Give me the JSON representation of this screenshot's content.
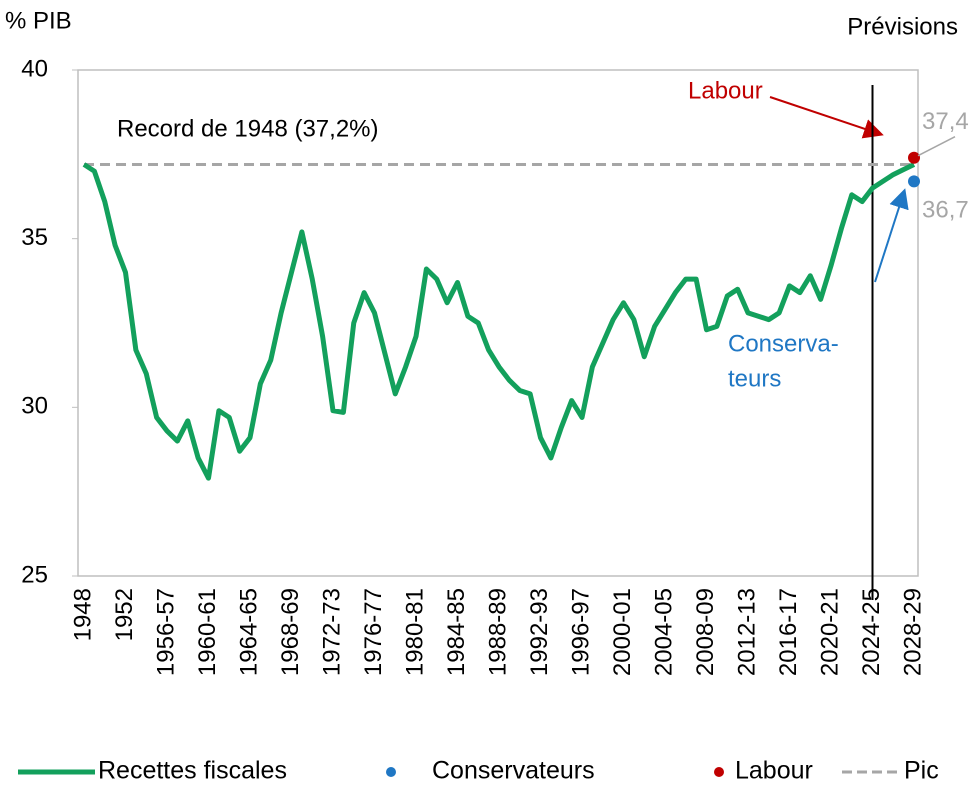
{
  "chart_data": {
    "type": "line",
    "y_label": "% PIB",
    "forecast_label": "Prévisions",
    "annotations": [
      {
        "text": "Record de 1948 (37,2%)"
      },
      {
        "text": "Labour",
        "color": "#c00000"
      },
      {
        "lines": [
          "Conserva-",
          "teurs"
        ],
        "color": "#1f77c4"
      }
    ],
    "categories": [
      "1948",
      null,
      null,
      null,
      "1952",
      null,
      null,
      null,
      "1956-57",
      null,
      null,
      null,
      "1960-61",
      null,
      null,
      null,
      "1964-65",
      null,
      null,
      null,
      "1968-69",
      null,
      null,
      null,
      "1972-73",
      null,
      null,
      null,
      "1976-77",
      null,
      null,
      null,
      "1980-81",
      null,
      null,
      null,
      "1984-85",
      null,
      null,
      null,
      "1988-89",
      null,
      null,
      null,
      "1992-93",
      null,
      null,
      null,
      "1996-97",
      null,
      null,
      null,
      "2000-01",
      null,
      null,
      null,
      "2004-05",
      null,
      null,
      null,
      "2008-09",
      null,
      null,
      null,
      "2012-13",
      null,
      null,
      null,
      "2016-17",
      null,
      null,
      null,
      "2020-21",
      null,
      null,
      null,
      "2024-25",
      null,
      null,
      null,
      "2028-29"
    ],
    "series": [
      {
        "name": "Recettes fiscales",
        "color": "#13a05c",
        "style": "line",
        "values": [
          37.2,
          37.0,
          36.1,
          34.8,
          34.0,
          31.7,
          31.0,
          29.7,
          29.3,
          29.0,
          29.6,
          28.5,
          27.9,
          29.9,
          29.7,
          28.7,
          29.1,
          30.7,
          31.4,
          32.8,
          34.0,
          35.2,
          33.8,
          32.1,
          29.9,
          29.85,
          32.5,
          33.4,
          32.8,
          31.6,
          30.4,
          31.2,
          32.1,
          34.1,
          33.8,
          33.1,
          33.7,
          32.7,
          32.5,
          31.7,
          31.2,
          30.8,
          30.5,
          30.4,
          29.1,
          28.5,
          29.4,
          30.2,
          29.7,
          31.2,
          31.9,
          32.6,
          33.1,
          32.6,
          31.5,
          32.4,
          32.9,
          33.4,
          33.8,
          33.8,
          32.3,
          32.4,
          33.3,
          33.5,
          32.8,
          32.7,
          32.6,
          32.8,
          33.6,
          33.4,
          33.9,
          33.2,
          34.2,
          35.3,
          36.3,
          36.1,
          36.5,
          36.7,
          36.9,
          37.05,
          37.2
        ]
      },
      {
        "name": "Conservateurs",
        "color": "#1f77c4",
        "style": "dot",
        "values": [
          null,
          null,
          null,
          null,
          null,
          null,
          null,
          null,
          null,
          null,
          null,
          null,
          null,
          null,
          null,
          null,
          null,
          null,
          null,
          null,
          null,
          null,
          null,
          null,
          null,
          null,
          null,
          null,
          null,
          null,
          null,
          null,
          null,
          null,
          null,
          null,
          null,
          null,
          null,
          null,
          null,
          null,
          null,
          null,
          null,
          null,
          null,
          null,
          null,
          null,
          null,
          null,
          null,
          null,
          null,
          null,
          null,
          null,
          null,
          null,
          null,
          null,
          null,
          null,
          null,
          null,
          null,
          null,
          null,
          null,
          null,
          null,
          null,
          null,
          null,
          null,
          null,
          null,
          null,
          null,
          36.7
        ],
        "value_labels": [
          null,
          null,
          null,
          null,
          null,
          null,
          null,
          null,
          null,
          null,
          null,
          null,
          null,
          null,
          null,
          null,
          null,
          null,
          null,
          null,
          null,
          null,
          null,
          null,
          null,
          null,
          null,
          null,
          null,
          null,
          null,
          null,
          null,
          null,
          null,
          null,
          null,
          null,
          null,
          null,
          null,
          null,
          null,
          null,
          null,
          null,
          null,
          null,
          null,
          null,
          null,
          null,
          null,
          null,
          null,
          null,
          null,
          null,
          null,
          null,
          null,
          null,
          null,
          null,
          null,
          null,
          null,
          null,
          null,
          null,
          null,
          null,
          null,
          null,
          null,
          null,
          null,
          null,
          null,
          null,
          "36,7"
        ]
      },
      {
        "name": "Labour",
        "color": "#c00000",
        "style": "dot",
        "values": [
          null,
          null,
          null,
          null,
          null,
          null,
          null,
          null,
          null,
          null,
          null,
          null,
          null,
          null,
          null,
          null,
          null,
          null,
          null,
          null,
          null,
          null,
          null,
          null,
          null,
          null,
          null,
          null,
          null,
          null,
          null,
          null,
          null,
          null,
          null,
          null,
          null,
          null,
          null,
          null,
          null,
          null,
          null,
          null,
          null,
          null,
          null,
          null,
          null,
          null,
          null,
          null,
          null,
          null,
          null,
          null,
          null,
          null,
          null,
          null,
          null,
          null,
          null,
          null,
          null,
          null,
          null,
          null,
          null,
          null,
          null,
          null,
          null,
          null,
          null,
          null,
          null,
          null,
          null,
          null,
          37.4
        ],
        "value_labels": [
          null,
          null,
          null,
          null,
          null,
          null,
          null,
          null,
          null,
          null,
          null,
          null,
          null,
          null,
          null,
          null,
          null,
          null,
          null,
          null,
          null,
          null,
          null,
          null,
          null,
          null,
          null,
          null,
          null,
          null,
          null,
          null,
          null,
          null,
          null,
          null,
          null,
          null,
          null,
          null,
          null,
          null,
          null,
          null,
          null,
          null,
          null,
          null,
          null,
          null,
          null,
          null,
          null,
          null,
          null,
          null,
          null,
          null,
          null,
          null,
          null,
          null,
          null,
          null,
          null,
          null,
          null,
          null,
          null,
          null,
          null,
          null,
          null,
          null,
          null,
          null,
          null,
          null,
          null,
          null,
          "37,4"
        ]
      },
      {
        "name": "Pic",
        "color": "#a6a6a6",
        "style": "dash",
        "values": [
          37.2,
          37.2,
          37.2,
          37.2,
          37.2,
          37.2,
          37.2,
          37.2,
          37.2,
          37.2,
          37.2,
          37.2,
          37.2,
          37.2,
          37.2,
          37.2,
          37.2,
          37.2,
          37.2,
          37.2,
          37.2,
          37.2,
          37.2,
          37.2,
          37.2,
          37.2,
          37.2,
          37.2,
          37.2,
          37.2,
          37.2,
          37.2,
          37.2,
          37.2,
          37.2,
          37.2,
          37.2,
          37.2,
          37.2,
          37.2,
          37.2,
          37.2,
          37.2,
          37.2,
          37.2,
          37.2,
          37.2,
          37.2,
          37.2,
          37.2,
          37.2,
          37.2,
          37.2,
          37.2,
          37.2,
          37.2,
          37.2,
          37.2,
          37.2,
          37.2,
          37.2,
          37.2,
          37.2,
          37.2,
          37.2,
          37.2,
          37.2,
          37.2,
          37.2,
          37.2,
          37.2,
          37.2,
          37.2,
          37.2,
          37.2,
          37.2,
          37.2,
          37.2,
          37.2,
          37.2,
          37.2
        ]
      }
    ],
    "ylim": [
      25,
      40
    ],
    "yticks": [
      25,
      30,
      35,
      40
    ],
    "grid": false,
    "legend": "bottom"
  }
}
